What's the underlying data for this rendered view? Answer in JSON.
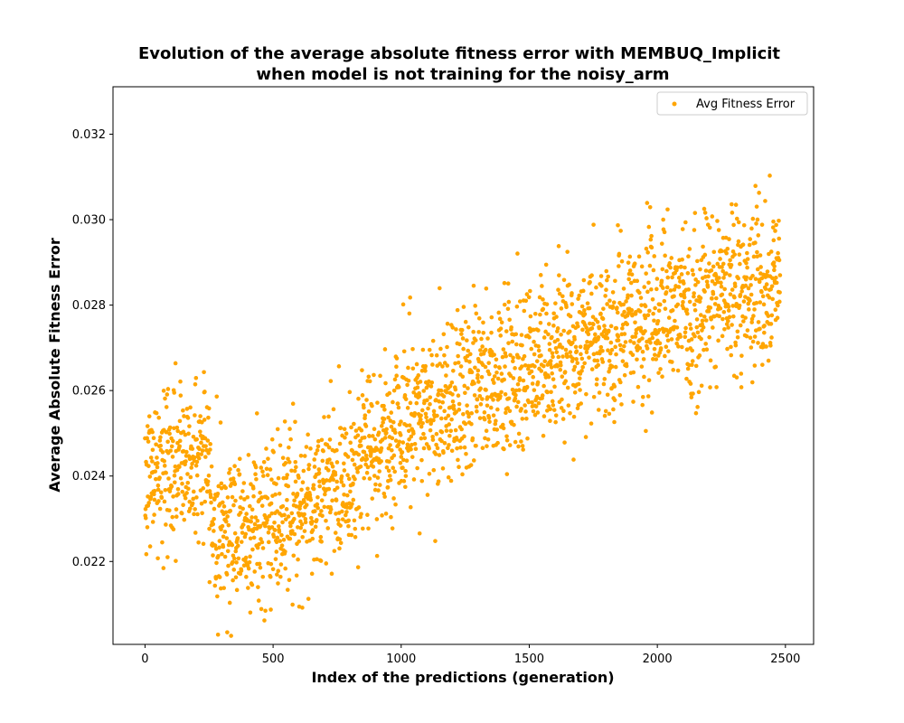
{
  "chart_data": {
    "type": "scatter",
    "title_line1": "Evolution of the average absolute fitness error with MEMBUQ_Implicit",
    "title_line2": "when model is not training for the noisy_arm",
    "xlabel": "Index of the predictions (generation)",
    "ylabel": "Average Absolute Fitness Error",
    "xlim": [
      -125,
      2610
    ],
    "ylim": [
      0.02006,
      0.03311
    ],
    "xticks": [
      0,
      500,
      1000,
      1500,
      2000,
      2500
    ],
    "xtick_labels": [
      "0",
      "500",
      "1000",
      "1500",
      "2000",
      "2500"
    ],
    "yticks": [
      0.022,
      0.024,
      0.026,
      0.028,
      0.03,
      0.032
    ],
    "ytick_labels": [
      "0.022",
      "0.024",
      "0.026",
      "0.028",
      "0.030",
      "0.032"
    ],
    "grid": false,
    "legend_position": "top-right",
    "series": [
      {
        "name": "Avg Fitness Error",
        "color": "#ffa500",
        "n_points": 2480,
        "x_start": 0,
        "x_end": 2479,
        "trend_knots": [
          [
            0,
            0.024
          ],
          [
            150,
            0.0243
          ],
          [
            240,
            0.0245
          ],
          [
            270,
            0.0228
          ],
          [
            400,
            0.0228
          ],
          [
            700,
            0.0236
          ],
          [
            1000,
            0.0252
          ],
          [
            1300,
            0.0261
          ],
          [
            1600,
            0.0269
          ],
          [
            2000,
            0.0277
          ],
          [
            2300,
            0.0284
          ],
          [
            2480,
            0.0286
          ]
        ],
        "spread_std": 0.00095
      }
    ]
  }
}
